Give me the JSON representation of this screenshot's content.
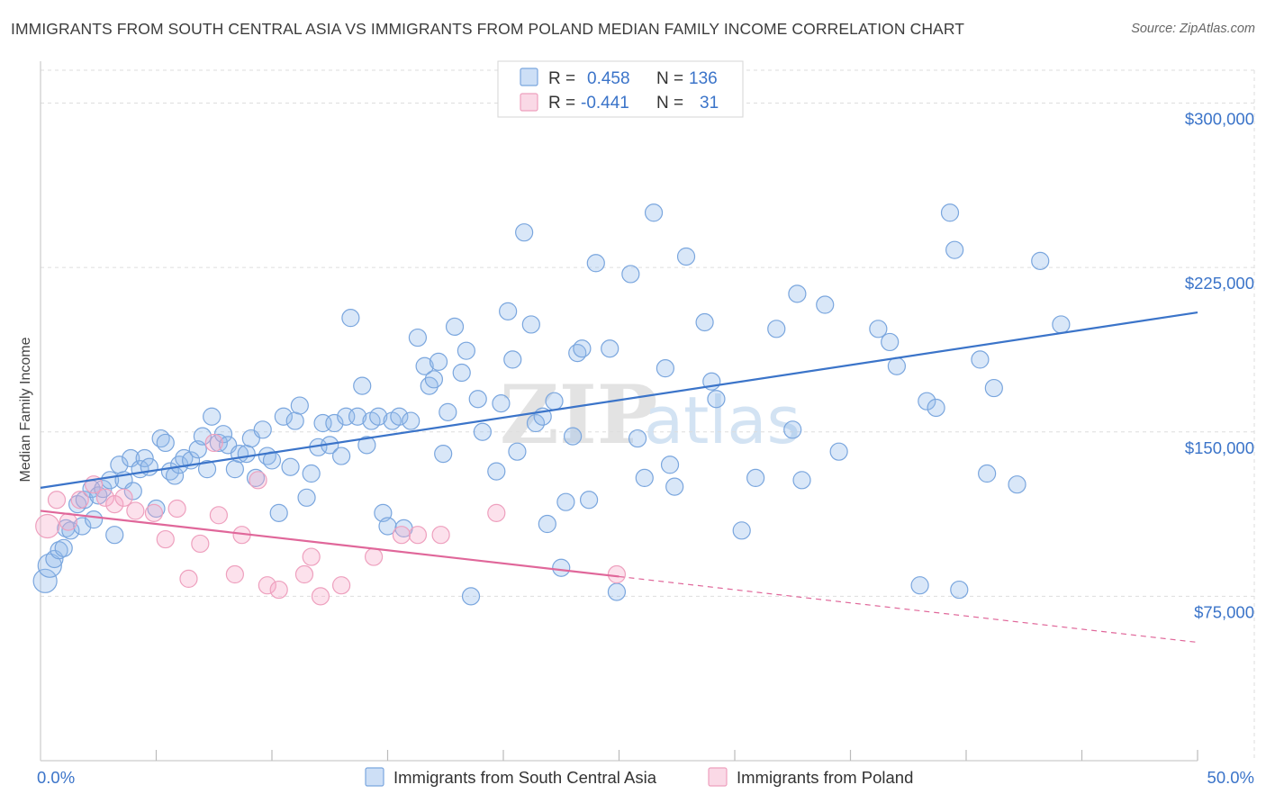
{
  "header": {
    "title": "IMMIGRANTS FROM SOUTH CENTRAL ASIA VS IMMIGRANTS FROM POLAND MEDIAN FAMILY INCOME CORRELATION CHART",
    "source": "Source: ZipAtlas.com"
  },
  "legend": {
    "rows": [
      {
        "r_label": "R =",
        "r_value": "0.458",
        "n_label": "N =",
        "n_value": "136"
      },
      {
        "r_label": "R =",
        "r_value": "-0.441",
        "n_label": "N =",
        "n_value": "31"
      }
    ]
  },
  "bottom_legend": {
    "series_a": "Immigrants from South Central Asia",
    "series_b": "Immigrants from Poland"
  },
  "watermark": {
    "zip": "ZIP",
    "atlas": "atlas"
  },
  "colors": {
    "blue": "#3b74c9",
    "blue_fill": "rgba(145,185,235,0.35)",
    "blue_stroke": "#7aa6de",
    "pink": "#e0679a",
    "pink_fill": "rgba(245,170,200,0.35)",
    "pink_stroke": "#eea0be",
    "grid": "#dddddd"
  },
  "chart_data": {
    "type": "scatter",
    "title": "IMMIGRANTS FROM SOUTH CENTRAL ASIA VS IMMIGRANTS FROM POLAND MEDIAN FAMILY INCOME CORRELATION CHART",
    "xlabel": "",
    "ylabel": "Median Family Income",
    "xlim": [
      0,
      50
    ],
    "ylim": [
      0,
      315000
    ],
    "x_tick_labels": [
      "0.0%",
      "50.0%"
    ],
    "y_ticks": [
      {
        "value": 75000,
        "label": "$75,000"
      },
      {
        "value": 150000,
        "label": "$150,000"
      },
      {
        "value": 225000,
        "label": "$225,000"
      },
      {
        "value": 300000,
        "label": "$300,000"
      }
    ],
    "series": [
      {
        "name": "Immigrants from South Central Asia",
        "r": 0.458,
        "n": 136,
        "trend": {
          "x": [
            0,
            50
          ],
          "y": [
            124500,
            204500
          ]
        },
        "points": [
          [
            0.2,
            82000
          ],
          [
            0.4,
            89000
          ],
          [
            0.6,
            92000
          ],
          [
            0.8,
            96000
          ],
          [
            1.0,
            97000
          ],
          [
            1.1,
            106000
          ],
          [
            1.3,
            105000
          ],
          [
            1.6,
            117000
          ],
          [
            1.8,
            107000
          ],
          [
            1.9,
            119000
          ],
          [
            2.2,
            124000
          ],
          [
            2.3,
            110000
          ],
          [
            2.5,
            121000
          ],
          [
            2.7,
            124000
          ],
          [
            3.0,
            128000
          ],
          [
            3.2,
            103000
          ],
          [
            3.4,
            135000
          ],
          [
            3.6,
            128000
          ],
          [
            3.9,
            138000
          ],
          [
            4.0,
            123000
          ],
          [
            4.3,
            133000
          ],
          [
            4.5,
            138000
          ],
          [
            4.7,
            134000
          ],
          [
            5.0,
            115000
          ],
          [
            5.2,
            147000
          ],
          [
            5.4,
            145000
          ],
          [
            5.6,
            132000
          ],
          [
            5.8,
            130000
          ],
          [
            6.0,
            135000
          ],
          [
            6.2,
            138000
          ],
          [
            6.5,
            137000
          ],
          [
            6.8,
            142000
          ],
          [
            7.0,
            148000
          ],
          [
            7.2,
            133000
          ],
          [
            7.4,
            157000
          ],
          [
            7.7,
            145000
          ],
          [
            7.9,
            149000
          ],
          [
            8.1,
            144000
          ],
          [
            8.4,
            133000
          ],
          [
            8.6,
            140000
          ],
          [
            8.9,
            140000
          ],
          [
            9.1,
            147000
          ],
          [
            9.3,
            129000
          ],
          [
            9.6,
            151000
          ],
          [
            9.8,
            139000
          ],
          [
            10.0,
            137000
          ],
          [
            10.3,
            113000
          ],
          [
            10.5,
            157000
          ],
          [
            10.8,
            134000
          ],
          [
            11.0,
            155000
          ],
          [
            11.2,
            162000
          ],
          [
            11.5,
            120000
          ],
          [
            11.7,
            131000
          ],
          [
            12.0,
            143000
          ],
          [
            12.2,
            154000
          ],
          [
            12.5,
            144000
          ],
          [
            12.7,
            154000
          ],
          [
            13.0,
            139000
          ],
          [
            13.2,
            157000
          ],
          [
            13.4,
            202000
          ],
          [
            13.7,
            157000
          ],
          [
            13.9,
            171000
          ],
          [
            14.1,
            144000
          ],
          [
            14.3,
            155000
          ],
          [
            14.6,
            157000
          ],
          [
            14.8,
            113000
          ],
          [
            15.0,
            107000
          ],
          [
            15.2,
            155000
          ],
          [
            15.5,
            157000
          ],
          [
            15.7,
            106000
          ],
          [
            16.0,
            155000
          ],
          [
            16.3,
            193000
          ],
          [
            16.6,
            180000
          ],
          [
            16.8,
            171000
          ],
          [
            17.0,
            174000
          ],
          [
            17.2,
            182000
          ],
          [
            17.4,
            140000
          ],
          [
            17.6,
            159000
          ],
          [
            17.9,
            198000
          ],
          [
            18.2,
            177000
          ],
          [
            18.4,
            187000
          ],
          [
            18.6,
            75000
          ],
          [
            18.9,
            165000
          ],
          [
            19.1,
            150000
          ],
          [
            19.7,
            132000
          ],
          [
            19.9,
            163000
          ],
          [
            20.2,
            205000
          ],
          [
            20.4,
            183000
          ],
          [
            20.6,
            141000
          ],
          [
            20.9,
            241000
          ],
          [
            21.2,
            199000
          ],
          [
            21.4,
            154000
          ],
          [
            21.7,
            157000
          ],
          [
            21.9,
            108000
          ],
          [
            22.2,
            164000
          ],
          [
            22.5,
            88000
          ],
          [
            22.7,
            118000
          ],
          [
            23.0,
            148000
          ],
          [
            23.2,
            186000
          ],
          [
            23.4,
            188000
          ],
          [
            23.7,
            119000
          ],
          [
            24.0,
            227000
          ],
          [
            24.6,
            188000
          ],
          [
            24.9,
            77000
          ],
          [
            25.5,
            222000
          ],
          [
            25.8,
            147000
          ],
          [
            26.1,
            129000
          ],
          [
            26.5,
            250000
          ],
          [
            27.0,
            179000
          ],
          [
            27.2,
            135000
          ],
          [
            27.4,
            125000
          ],
          [
            27.9,
            230000
          ],
          [
            28.7,
            200000
          ],
          [
            29.0,
            173000
          ],
          [
            29.2,
            165000
          ],
          [
            30.3,
            105000
          ],
          [
            30.9,
            129000
          ],
          [
            31.8,
            197000
          ],
          [
            32.5,
            151000
          ],
          [
            32.7,
            213000
          ],
          [
            32.9,
            128000
          ],
          [
            33.9,
            208000
          ],
          [
            34.5,
            141000
          ],
          [
            36.2,
            197000
          ],
          [
            36.7,
            191000
          ],
          [
            37.0,
            180000
          ],
          [
            38.0,
            80000
          ],
          [
            38.3,
            164000
          ],
          [
            38.7,
            161000
          ],
          [
            39.3,
            250000
          ],
          [
            39.5,
            233000
          ],
          [
            39.7,
            78000
          ],
          [
            40.6,
            183000
          ],
          [
            40.9,
            131000
          ],
          [
            41.2,
            170000
          ],
          [
            42.2,
            126000
          ],
          [
            43.2,
            228000
          ],
          [
            44.1,
            199000
          ]
        ]
      },
      {
        "name": "Immigrants from Poland",
        "r": -0.441,
        "n": 31,
        "trend": {
          "x": [
            0,
            25
          ],
          "y": [
            114000,
            84000
          ]
        },
        "trend_dashed": {
          "x": [
            25,
            50
          ],
          "y": [
            84000,
            54000
          ]
        },
        "points": [
          [
            0.3,
            107000
          ],
          [
            0.7,
            119000
          ],
          [
            1.2,
            109000
          ],
          [
            1.7,
            119000
          ],
          [
            2.3,
            126000
          ],
          [
            2.8,
            120000
          ],
          [
            3.2,
            117000
          ],
          [
            3.6,
            120000
          ],
          [
            4.1,
            114000
          ],
          [
            4.9,
            113000
          ],
          [
            5.4,
            101000
          ],
          [
            5.9,
            115000
          ],
          [
            6.4,
            83000
          ],
          [
            6.9,
            99000
          ],
          [
            7.5,
            145000
          ],
          [
            7.7,
            112000
          ],
          [
            8.4,
            85000
          ],
          [
            8.7,
            103000
          ],
          [
            9.4,
            128000
          ],
          [
            9.8,
            80000
          ],
          [
            10.3,
            78000
          ],
          [
            11.4,
            85000
          ],
          [
            11.7,
            93000
          ],
          [
            12.1,
            75000
          ],
          [
            13.0,
            80000
          ],
          [
            14.4,
            93000
          ],
          [
            15.6,
            103000
          ],
          [
            16.3,
            103000
          ],
          [
            17.3,
            103000
          ],
          [
            19.7,
            113000
          ],
          [
            24.9,
            85000
          ]
        ]
      }
    ]
  }
}
